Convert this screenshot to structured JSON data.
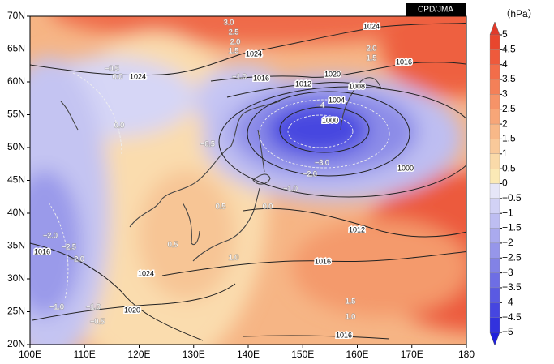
{
  "source": "CPD/JMA",
  "unit": "（hPa）",
  "map": {
    "lat_ticks": [
      {
        "value": 70,
        "label": "70N"
      },
      {
        "value": 65,
        "label": "65N"
      },
      {
        "value": 60,
        "label": "60N"
      },
      {
        "value": 55,
        "label": "55N"
      },
      {
        "value": 50,
        "label": "50N"
      },
      {
        "value": 45,
        "label": "45N"
      },
      {
        "value": 40,
        "label": "40N"
      },
      {
        "value": 35,
        "label": "35N"
      },
      {
        "value": 30,
        "label": "30N"
      },
      {
        "value": 25,
        "label": "25N"
      },
      {
        "value": 20,
        "label": "20N"
      }
    ],
    "lon_ticks": [
      {
        "value": 100,
        "label": "100E"
      },
      {
        "value": 110,
        "label": "110E"
      },
      {
        "value": 120,
        "label": "120E"
      },
      {
        "value": 130,
        "label": "130E"
      },
      {
        "value": 140,
        "label": "140E"
      },
      {
        "value": 150,
        "label": "150E"
      },
      {
        "value": 160,
        "label": "160E"
      },
      {
        "value": 170,
        "label": "170E"
      },
      180
    ],
    "colorbar": {
      "ticks": [
        5,
        4.5,
        4,
        3.5,
        3,
        2.5,
        2,
        1.5,
        1,
        0.5,
        0,
        {
          "value": -0.5,
          "label": "−0.5"
        },
        {
          "value": -1,
          "label": "−1"
        },
        {
          "value": -1.5,
          "label": "−1.5"
        },
        {
          "value": -2,
          "label": "−2"
        },
        {
          "value": -2.5,
          "label": "−2.5"
        },
        {
          "value": -3,
          "label": "−3"
        },
        {
          "value": -3.5,
          "label": "−3.5"
        },
        {
          "value": -4,
          "label": "−4"
        },
        {
          "value": -4.5,
          "label": "−4.5"
        },
        {
          "value": -5,
          "label": "−5"
        }
      ]
    },
    "isobar_labels": [
      1024,
      1024,
      1016,
      1016,
      1020,
      1012,
      1008,
      1004,
      1000,
      1000,
      1012,
      1016,
      1024,
      1024,
      1020,
      1016,
      1016
    ],
    "anomaly_labels": [
      "−0.5",
      "0.0",
      "0.0",
      "−0.5",
      "0.5",
      "0.0",
      "0.5",
      "1.0",
      "−2.0",
      "−2.5",
      "−2.0",
      "−1.0",
      "−1.0",
      "−0.5",
      "1.5",
      "1.0",
      "−1.0",
      "−3.0",
      "−2.0",
      "−1.0",
      "−4",
      "3.0",
      "2.5",
      "2.0",
      "1.5",
      "2.0",
      "1.5"
    ]
  }
}
